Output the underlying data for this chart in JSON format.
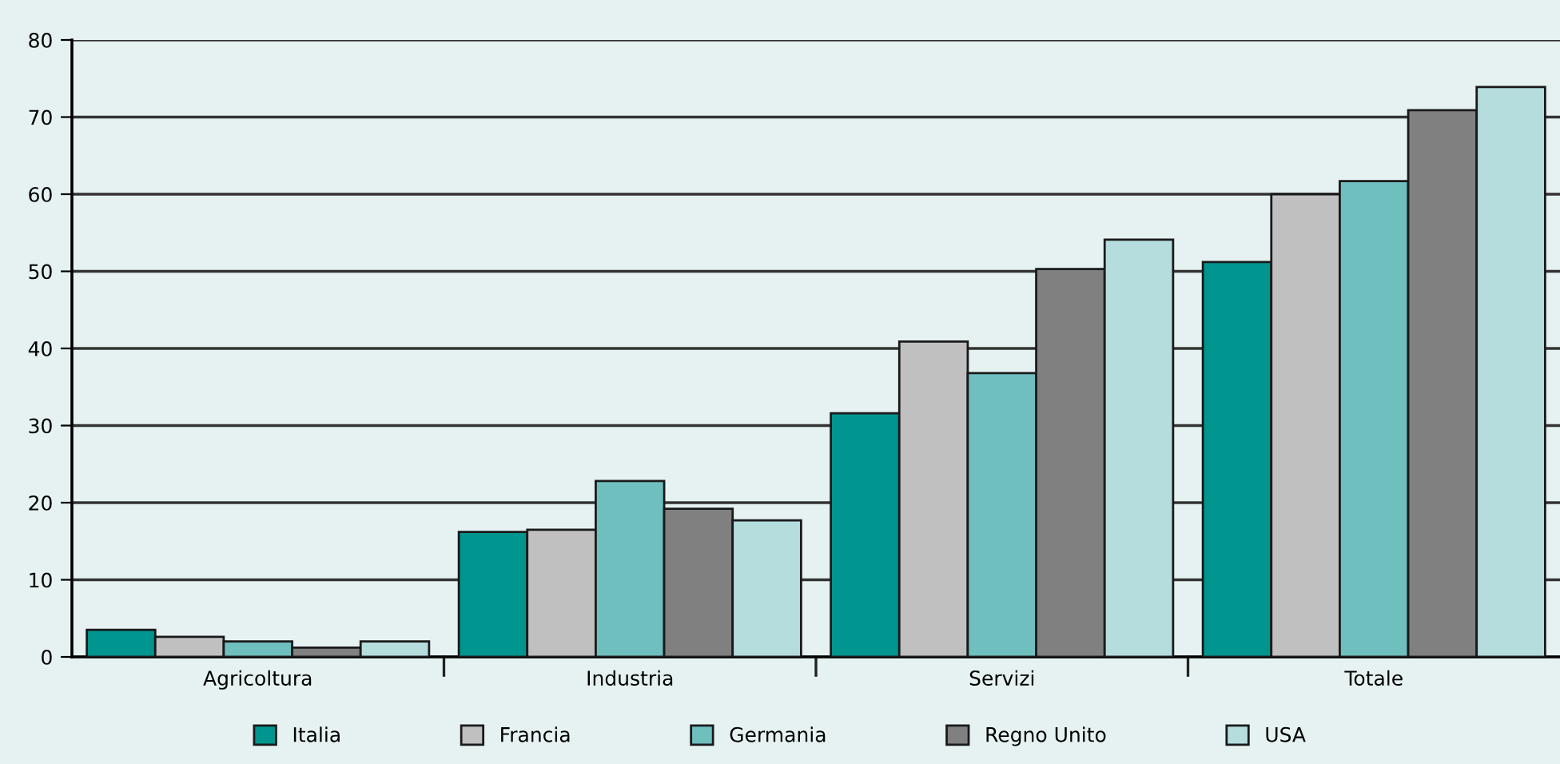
{
  "chart_data": {
    "type": "bar",
    "categories": [
      "Agricoltura",
      "Industria",
      "Servizi",
      "Totale"
    ],
    "series": [
      {
        "name": "Italia",
        "color": "#00968f",
        "values": [
          3.5,
          16.2,
          31.6,
          51.2
        ]
      },
      {
        "name": "Francia",
        "color": "#c0c0c0",
        "values": [
          2.6,
          16.5,
          40.9,
          60.0
        ]
      },
      {
        "name": "Germania",
        "color": "#70bfbf",
        "values": [
          2.0,
          22.8,
          36.8,
          61.7
        ]
      },
      {
        "name": "Regno Unito",
        "color": "#808080",
        "values": [
          1.2,
          19.2,
          50.3,
          70.9
        ]
      },
      {
        "name": "USA",
        "color": "#b5dddd",
        "values": [
          2.0,
          17.7,
          54.1,
          73.9
        ]
      }
    ],
    "ylim": [
      0,
      80
    ],
    "yticks": [
      0,
      10,
      20,
      30,
      40,
      50,
      60,
      70,
      80
    ],
    "grid": "y",
    "legend": "bottom"
  }
}
